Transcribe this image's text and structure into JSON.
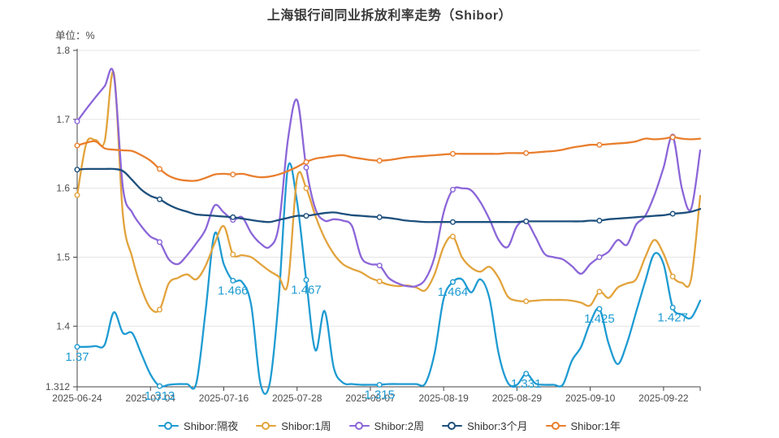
{
  "chart": {
    "title": "上海银行间同业拆放利率走势（Shibor）",
    "unit_label": "单位：%"
  },
  "chart_data": {
    "type": "line",
    "title": "上海银行间同业拆放利率走势（Shibor）",
    "ylabel": "单位：%",
    "xlabel": "",
    "grid": true,
    "smooth": true,
    "legend_position": "bottom",
    "ylim": [
      1.312,
      1.8
    ],
    "y_tick_labels": [
      "1.312",
      "1.4",
      "1.5",
      "1.6",
      "1.7",
      "1.8"
    ],
    "y_ticks": [
      1.312,
      1.4,
      1.5,
      1.6,
      1.7,
      1.8
    ],
    "x_tick_indices": [
      0,
      8,
      16,
      24,
      32,
      40,
      48,
      56,
      64
    ],
    "x_tick_labels": [
      "2025-06-24",
      "2025-07-04",
      "2025-07-16",
      "2025-07-28",
      "2025-08-07",
      "2025-08-19",
      "2025-08-29",
      "2025-09-10",
      "2025-09-22"
    ],
    "x_dates": [
      "2025-06-24",
      "2025-06-25",
      "2025-06-26",
      "2025-06-27",
      "2025-06-30",
      "2025-07-01",
      "2025-07-02",
      "2025-07-03",
      "2025-07-04",
      "2025-07-07",
      "2025-07-08",
      "2025-07-09",
      "2025-07-10",
      "2025-07-11",
      "2025-07-14",
      "2025-07-15",
      "2025-07-16",
      "2025-07-17",
      "2025-07-18",
      "2025-07-21",
      "2025-07-22",
      "2025-07-23",
      "2025-07-24",
      "2025-07-25",
      "2025-07-28",
      "2025-07-29",
      "2025-07-30",
      "2025-07-31",
      "2025-08-01",
      "2025-08-04",
      "2025-08-05",
      "2025-08-06",
      "2025-08-07",
      "2025-08-08",
      "2025-08-11",
      "2025-08-12",
      "2025-08-13",
      "2025-08-14",
      "2025-08-15",
      "2025-08-18",
      "2025-08-19",
      "2025-08-20",
      "2025-08-21",
      "2025-08-22",
      "2025-08-25",
      "2025-08-26",
      "2025-08-27",
      "2025-08-28",
      "2025-08-29",
      "2025-09-01",
      "2025-09-02",
      "2025-09-03",
      "2025-09-04",
      "2025-09-05",
      "2025-09-08",
      "2025-09-09",
      "2025-09-10",
      "2025-09-11",
      "2025-09-12",
      "2025-09-15",
      "2025-09-16",
      "2025-09-17",
      "2025-09-18",
      "2025-09-19",
      "2025-09-22",
      "2025-09-23",
      "2025-09-24",
      "2025-09-25",
      "2025-09-26"
    ],
    "marker_indices": [
      0,
      9,
      17,
      25,
      33,
      41,
      49,
      57,
      65
    ],
    "series": [
      {
        "name": "Shibor:隔夜",
        "color": "#1e9bd2",
        "values": [
          1.37,
          1.37,
          1.371,
          1.373,
          1.42,
          1.39,
          1.39,
          1.36,
          1.33,
          1.313,
          1.315,
          1.316,
          1.316,
          1.317,
          1.42,
          1.534,
          1.49,
          1.466,
          1.464,
          1.43,
          1.317,
          1.316,
          1.44,
          1.63,
          1.58,
          1.467,
          1.365,
          1.422,
          1.34,
          1.318,
          1.316,
          1.315,
          1.315,
          1.315,
          1.316,
          1.316,
          1.316,
          1.316,
          1.317,
          1.36,
          1.44,
          1.464,
          1.468,
          1.449,
          1.468,
          1.44,
          1.36,
          1.318,
          1.315,
          1.331,
          1.317,
          1.315,
          1.315,
          1.315,
          1.35,
          1.37,
          1.405,
          1.425,
          1.375,
          1.345,
          1.375,
          1.42,
          1.465,
          1.505,
          1.49,
          1.427,
          1.417,
          1.412,
          1.437
        ],
        "point_labels": [
          {
            "index": 0,
            "text": "1.37"
          },
          {
            "index": 9,
            "text": "1.313"
          },
          {
            "index": 17,
            "text": "1.466"
          },
          {
            "index": 25,
            "text": "1.467"
          },
          {
            "index": 33,
            "text": "1.315"
          },
          {
            "index": 41,
            "text": "1.464"
          },
          {
            "index": 49,
            "text": "1.331"
          },
          {
            "index": 57,
            "text": "1.425"
          },
          {
            "index": 65,
            "text": "1.427"
          }
        ]
      },
      {
        "name": "Shibor:1周",
        "color": "#e2a33c",
        "values": [
          1.59,
          1.665,
          1.67,
          1.668,
          1.767,
          1.56,
          1.5,
          1.455,
          1.426,
          1.424,
          1.462,
          1.47,
          1.475,
          1.468,
          1.487,
          1.52,
          1.545,
          1.504,
          1.503,
          1.5,
          1.49,
          1.48,
          1.472,
          1.462,
          1.615,
          1.6,
          1.56,
          1.528,
          1.505,
          1.49,
          1.483,
          1.478,
          1.47,
          1.465,
          1.46,
          1.458,
          1.459,
          1.456,
          1.452,
          1.475,
          1.515,
          1.53,
          1.5,
          1.485,
          1.479,
          1.486,
          1.47,
          1.443,
          1.437,
          1.436,
          1.437,
          1.438,
          1.438,
          1.438,
          1.437,
          1.434,
          1.43,
          1.45,
          1.441,
          1.456,
          1.462,
          1.468,
          1.5,
          1.525,
          1.505,
          1.472,
          1.463,
          1.468,
          1.589
        ],
        "point_labels": []
      },
      {
        "name": "Shibor:2周",
        "color": "#8b66d8",
        "values": [
          1.697,
          1.715,
          1.732,
          1.748,
          1.765,
          1.6,
          1.565,
          1.545,
          1.53,
          1.522,
          1.497,
          1.49,
          1.503,
          1.52,
          1.54,
          1.575,
          1.565,
          1.554,
          1.558,
          1.535,
          1.52,
          1.515,
          1.545,
          1.67,
          1.728,
          1.63,
          1.57,
          1.553,
          1.555,
          1.553,
          1.545,
          1.5,
          1.49,
          1.488,
          1.47,
          1.462,
          1.458,
          1.458,
          1.468,
          1.5,
          1.565,
          1.598,
          1.6,
          1.597,
          1.58,
          1.555,
          1.525,
          1.515,
          1.545,
          1.552,
          1.53,
          1.505,
          1.5,
          1.497,
          1.487,
          1.476,
          1.49,
          1.5,
          1.508,
          1.525,
          1.518,
          1.547,
          1.56,
          1.59,
          1.63,
          1.675,
          1.6,
          1.57,
          1.655
        ],
        "point_labels": []
      },
      {
        "name": "Shibor:3个月",
        "color": "#1d4f7c",
        "values": [
          1.627,
          1.628,
          1.628,
          1.628,
          1.628,
          1.625,
          1.612,
          1.598,
          1.589,
          1.584,
          1.576,
          1.57,
          1.566,
          1.562,
          1.561,
          1.56,
          1.559,
          1.558,
          1.556,
          1.554,
          1.552,
          1.551,
          1.554,
          1.557,
          1.56,
          1.56,
          1.562,
          1.564,
          1.565,
          1.563,
          1.561,
          1.56,
          1.559,
          1.558,
          1.557,
          1.555,
          1.553,
          1.552,
          1.551,
          1.551,
          1.551,
          1.551,
          1.551,
          1.551,
          1.551,
          1.551,
          1.551,
          1.551,
          1.551,
          1.552,
          1.552,
          1.552,
          1.552,
          1.552,
          1.552,
          1.552,
          1.553,
          1.553,
          1.555,
          1.556,
          1.557,
          1.558,
          1.559,
          1.56,
          1.561,
          1.563,
          1.564,
          1.566,
          1.57
        ],
        "point_labels": []
      },
      {
        "name": "Shibor:1年",
        "color": "#e97e2d",
        "values": [
          1.662,
          1.666,
          1.668,
          1.658,
          1.656,
          1.655,
          1.654,
          1.648,
          1.64,
          1.628,
          1.618,
          1.613,
          1.611,
          1.611,
          1.615,
          1.62,
          1.621,
          1.62,
          1.621,
          1.618,
          1.616,
          1.617,
          1.62,
          1.625,
          1.631,
          1.638,
          1.643,
          1.645,
          1.647,
          1.648,
          1.645,
          1.643,
          1.641,
          1.64,
          1.641,
          1.643,
          1.645,
          1.646,
          1.647,
          1.648,
          1.649,
          1.65,
          1.65,
          1.65,
          1.65,
          1.65,
          1.65,
          1.651,
          1.651,
          1.651,
          1.652,
          1.653,
          1.654,
          1.656,
          1.659,
          1.661,
          1.663,
          1.663,
          1.664,
          1.665,
          1.666,
          1.668,
          1.672,
          1.671,
          1.672,
          1.674,
          1.672,
          1.671,
          1.672
        ],
        "point_labels": []
      }
    ],
    "colors": {
      "axis_line": "#454545",
      "grid_line": "#e4e4e4",
      "tick_label": "#4d4d4d",
      "title": "#3b3b3b",
      "background": "#ffffff"
    }
  }
}
